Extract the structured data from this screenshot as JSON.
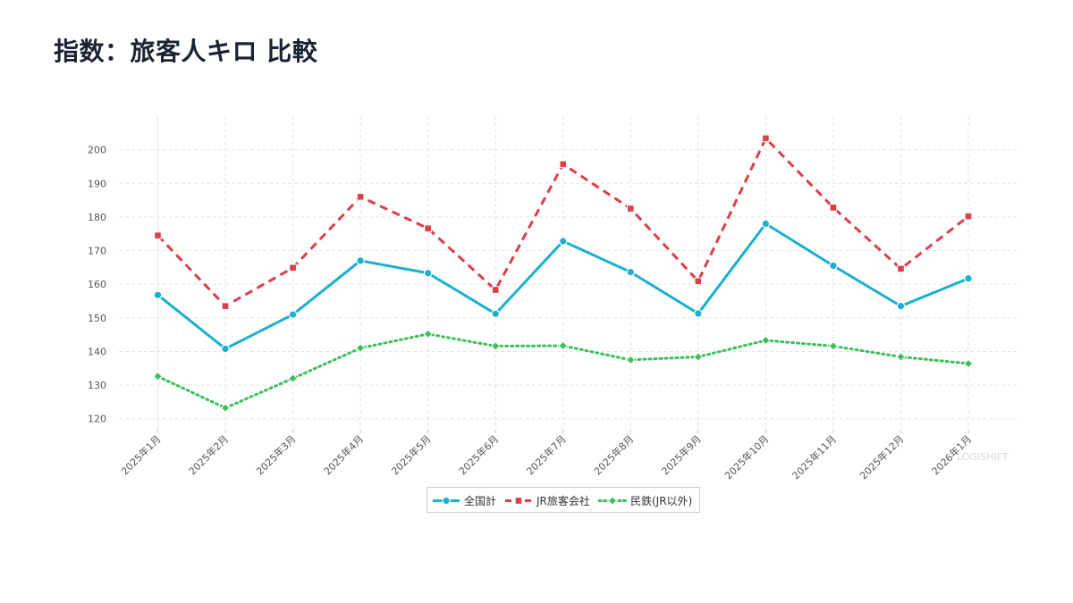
{
  "title": "指数：旅客人キロ 比較",
  "watermark": "LOGISHIFT",
  "chart_data": {
    "type": "line",
    "title": "指数：旅客人キロ 比較",
    "xlabel": "",
    "ylabel": "",
    "categories": [
      "2025年1月",
      "2025年2月",
      "2025年3月",
      "2025年4月",
      "2025年5月",
      "2025年6月",
      "2025年7月",
      "2025年8月",
      "2025年9月",
      "2025年10月",
      "2025年11月",
      "2025年12月",
      "2026年1月"
    ],
    "ylim": [
      117,
      210
    ],
    "yticks": [
      120,
      130,
      140,
      150,
      160,
      170,
      180,
      190,
      200
    ],
    "grid": true,
    "legend_position": "bottom",
    "series": [
      {
        "name": "全国計",
        "color": "#1ab0cf",
        "dash": "solid",
        "marker": "circle",
        "values": [
          156.8,
          140.8,
          151.0,
          167.0,
          163.3,
          151.2,
          172.8,
          163.6,
          151.3,
          178.0,
          165.5,
          153.5,
          161.7
        ]
      },
      {
        "name": "JR旅客会社",
        "color": "#d9404a",
        "dash": "dashed",
        "marker": "square",
        "values": [
          174.5,
          153.5,
          164.9,
          186.0,
          176.6,
          158.3,
          195.7,
          182.5,
          160.9,
          203.4,
          182.8,
          164.6,
          180.2
        ]
      },
      {
        "name": "民鉄(JR以外)",
        "color": "#3bbf58",
        "dash": "dotted",
        "marker": "diamond",
        "values": [
          132.6,
          123.2,
          132.0,
          141.0,
          145.2,
          141.6,
          141.7,
          137.5,
          138.4,
          143.3,
          141.6,
          138.4,
          136.4
        ]
      }
    ]
  }
}
